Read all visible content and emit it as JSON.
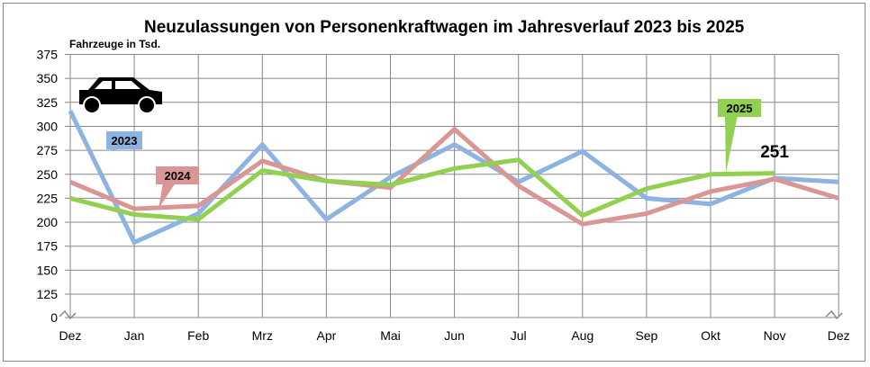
{
  "chart_data": {
    "type": "line",
    "title": "Neuzulassungen von Personenkraftwagen im Jahresverlauf 2023 bis 2025",
    "ylabel": "Fahrzeuge in Tsd.",
    "categories": [
      "Dez",
      "Jan",
      "Feb",
      "Mrz",
      "Apr",
      "Mai",
      "Jun",
      "Jul",
      "Aug",
      "Sep",
      "Okt",
      "Nov",
      "Dez"
    ],
    "yticks": [
      0,
      125,
      150,
      175,
      200,
      225,
      250,
      275,
      300,
      325,
      350,
      375
    ],
    "ylim": [
      0,
      375
    ],
    "axis_break": true,
    "grid": true,
    "series": [
      {
        "name": "2023",
        "color": "#8db3e2",
        "values": [
          316,
          179,
          209,
          281,
          203,
          247,
          281,
          242,
          274,
          225,
          219,
          246,
          242
        ]
      },
      {
        "name": "2024",
        "color": "#d99694",
        "values": [
          242,
          214,
          217,
          264,
          243,
          236,
          297,
          238,
          198,
          209,
          232,
          245,
          225
        ]
      },
      {
        "name": "2025",
        "color": "#92d050",
        "values": [
          225,
          208,
          203,
          254,
          243,
          239,
          256,
          265,
          207,
          235,
          250,
          251,
          null
        ]
      }
    ],
    "annotations": [
      {
        "text": "251",
        "series": "2025",
        "category_index": 11
      }
    ],
    "icon": "car-icon"
  }
}
